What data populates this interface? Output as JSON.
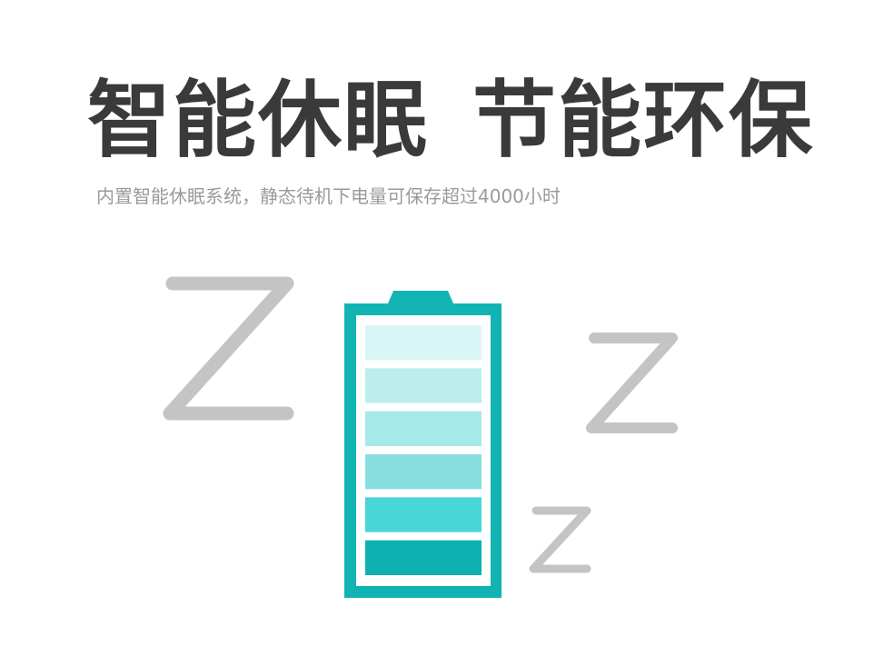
{
  "headline": {
    "part1": "智能休眠",
    "part2": "节能环保"
  },
  "subtitle": "内置智能休眠系统，静态待机下电量可保存超过4000小时",
  "battery": {
    "level_segments": 6,
    "segments_total": 6,
    "frame_color": "#12b3b3",
    "segment_colors": [
      "#d9f6f6",
      "#bdeeee",
      "#a7e8e8",
      "#87dfdf",
      "#49d6d6",
      "#0db1b1"
    ]
  },
  "sleep_letters": {
    "large": "Z",
    "medium": "Z",
    "small": "Z",
    "color": "#c4c4c4"
  }
}
